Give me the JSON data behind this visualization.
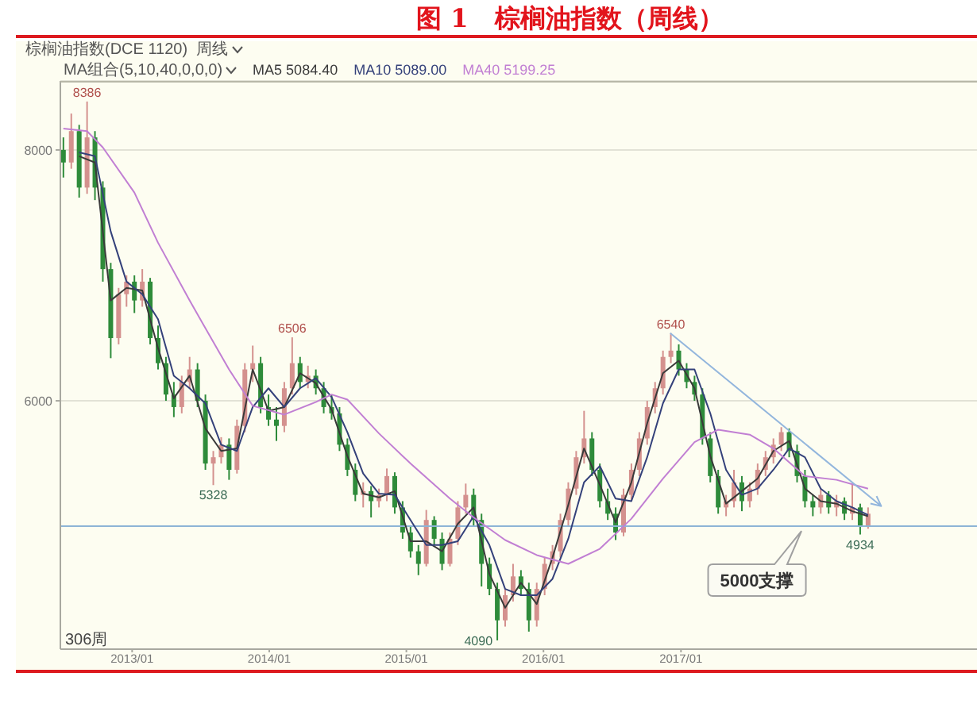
{
  "chart_data": {
    "type": "candlestick",
    "title": "图 1   棕榈油指数（周线）",
    "subtitle": "棕榈油指数(DCE 1120)  周线",
    "legend_title": "MA组合(5,10,40,0,0,0)",
    "x": [
      "2012-07-02",
      "2012-07-23",
      "2012-08-13",
      "2012-09-03",
      "2012-09-24",
      "2012-10-15",
      "2012-11-05",
      "2012-11-26",
      "2012-12-17",
      "2013-01-07",
      "2013-01-28",
      "2013-02-18",
      "2013-03-11",
      "2013-04-01",
      "2013-04-22",
      "2013-05-13",
      "2013-06-03",
      "2013-06-24",
      "2013-07-15",
      "2013-08-05",
      "2013-08-26",
      "2013-09-16",
      "2013-10-07",
      "2013-10-28",
      "2013-11-18",
      "2013-12-09",
      "2013-12-30",
      "2014-01-20",
      "2014-02-10",
      "2014-03-03",
      "2014-03-24",
      "2014-04-14",
      "2014-05-05",
      "2014-05-26",
      "2014-06-16",
      "2014-07-07",
      "2014-07-28",
      "2014-08-18",
      "2014-09-08",
      "2014-09-29",
      "2014-10-20",
      "2014-11-10",
      "2014-12-01",
      "2014-12-22",
      "2015-01-12",
      "2015-02-02",
      "2015-02-23",
      "2015-03-16",
      "2015-04-06",
      "2015-04-27",
      "2015-05-18",
      "2015-06-08",
      "2015-06-29",
      "2015-07-20",
      "2015-08-10",
      "2015-08-31",
      "2015-09-21",
      "2015-10-12",
      "2015-11-02",
      "2015-11-23",
      "2015-12-14",
      "2016-01-04",
      "2016-01-25",
      "2016-02-15",
      "2016-03-07",
      "2016-03-28",
      "2016-04-18",
      "2016-05-09",
      "2016-05-30",
      "2016-06-20",
      "2016-07-11",
      "2016-08-01",
      "2016-08-22",
      "2016-09-12",
      "2016-10-03",
      "2016-10-24",
      "2016-11-14",
      "2016-12-05",
      "2016-12-26",
      "2017-01-16",
      "2017-02-06",
      "2017-02-27",
      "2017-03-20",
      "2017-04-10",
      "2017-05-01",
      "2017-05-22",
      "2017-06-12",
      "2017-07-03",
      "2017-07-24",
      "2017-08-14",
      "2017-09-04",
      "2017-09-25",
      "2017-10-16",
      "2017-11-06",
      "2017-11-27",
      "2017-12-18",
      "2018-01-08",
      "2018-01-29",
      "2018-02-19",
      "2018-03-12",
      "2018-04-02",
      "2018-04-23",
      "2018-05-14"
    ],
    "ohlc": [
      [
        8000,
        8100,
        7780,
        7900
      ],
      [
        7900,
        8290,
        7850,
        8150
      ],
      [
        8150,
        8200,
        7620,
        7700
      ],
      [
        7700,
        8386,
        7650,
        8100
      ],
      [
        8100,
        8150,
        7600,
        7700
      ],
      [
        7700,
        7750,
        6950,
        7050
      ],
      [
        7050,
        7100,
        6340,
        6500
      ],
      [
        6500,
        6900,
        6450,
        6850
      ],
      [
        6850,
        7000,
        6750,
        6950
      ],
      [
        6950,
        7000,
        6700,
        6800
      ],
      [
        6800,
        7050,
        6750,
        6950
      ],
      [
        6950,
        6980,
        6450,
        6500
      ],
      [
        6500,
        6600,
        6250,
        6300
      ],
      [
        6300,
        6350,
        6000,
        6050
      ],
      [
        6050,
        6150,
        5870,
        5950
      ],
      [
        5950,
        6200,
        5900,
        6150
      ],
      [
        6150,
        6350,
        6100,
        6250
      ],
      [
        6250,
        6300,
        5950,
        6000
      ],
      [
        6000,
        6050,
        5450,
        5500
      ],
      [
        5500,
        5600,
        5328,
        5550
      ],
      [
        5550,
        5710,
        5500,
        5650
      ],
      [
        5650,
        5700,
        5370,
        5450
      ],
      [
        5450,
        5850,
        5420,
        5800
      ],
      [
        5800,
        6300,
        5750,
        6250
      ],
      [
        6250,
        6440,
        6150,
        6300
      ],
      [
        6300,
        6350,
        5900,
        5950
      ],
      [
        5950,
        6050,
        5800,
        5850
      ],
      [
        5850,
        5950,
        5680,
        5800
      ],
      [
        5800,
        6150,
        5750,
        6100
      ],
      [
        6100,
        6506,
        6050,
        6300
      ],
      [
        6300,
        6350,
        6100,
        6150
      ],
      [
        6150,
        6280,
        6100,
        6200
      ],
      [
        6200,
        6250,
        6050,
        6100
      ],
      [
        6100,
        6150,
        5900,
        5950
      ],
      [
        5950,
        6050,
        5850,
        5900
      ],
      [
        5900,
        5950,
        5600,
        5650
      ],
      [
        5650,
        5700,
        5400,
        5450
      ],
      [
        5450,
        5500,
        5200,
        5250
      ],
      [
        5250,
        5350,
        5150,
        5280
      ],
      [
        5280,
        5320,
        5070,
        5200
      ],
      [
        5200,
        5300,
        5150,
        5250
      ],
      [
        5250,
        5460,
        5200,
        5400
      ],
      [
        5400,
        5430,
        5100,
        5150
      ],
      [
        5150,
        5200,
        4900,
        4950
      ],
      [
        4950,
        5000,
        4750,
        4800
      ],
      [
        4800,
        4850,
        4610,
        4700
      ],
      [
        4700,
        5130,
        4680,
        5050
      ],
      [
        5050,
        5080,
        4850,
        4900
      ],
      [
        4900,
        4950,
        4650,
        4700
      ],
      [
        4700,
        4950,
        4680,
        4900
      ],
      [
        4900,
        5200,
        4850,
        5150
      ],
      [
        5150,
        5340,
        5100,
        5250
      ],
      [
        5250,
        5300,
        5000,
        5050
      ],
      [
        5050,
        5100,
        4520,
        4700
      ],
      [
        4700,
        4750,
        4450,
        4500
      ],
      [
        4500,
        4550,
        4090,
        4250
      ],
      [
        4250,
        4500,
        4200,
        4450
      ],
      [
        4450,
        4700,
        4400,
        4600
      ],
      [
        4600,
        4650,
        4450,
        4500
      ],
      [
        4500,
        4550,
        4160,
        4250
      ],
      [
        4250,
        4550,
        4200,
        4500
      ],
      [
        4500,
        4750,
        4450,
        4700
      ],
      [
        4700,
        4850,
        4650,
        4800
      ],
      [
        4800,
        5100,
        4750,
        5050
      ],
      [
        5050,
        5350,
        5000,
        5300
      ],
      [
        5300,
        5600,
        5250,
        5550
      ],
      [
        5550,
        5920,
        5500,
        5700
      ],
      [
        5700,
        5750,
        5400,
        5450
      ],
      [
        5450,
        5500,
        5150,
        5200
      ],
      [
        5200,
        5300,
        5050,
        5100
      ],
      [
        5100,
        5150,
        4890,
        4950
      ],
      [
        4950,
        5300,
        4920,
        5250
      ],
      [
        5250,
        5500,
        5200,
        5450
      ],
      [
        5450,
        5750,
        5400,
        5700
      ],
      [
        5700,
        6000,
        5650,
        5950
      ],
      [
        5950,
        6150,
        5900,
        6100
      ],
      [
        6100,
        6400,
        6050,
        6350
      ],
      [
        6350,
        6540,
        6300,
        6400
      ],
      [
        6400,
        6450,
        6200,
        6250
      ],
      [
        6250,
        6300,
        6100,
        6150
      ],
      [
        6150,
        6200,
        6000,
        6050
      ],
      [
        6050,
        6100,
        5650,
        5700
      ],
      [
        5700,
        5750,
        5350,
        5400
      ],
      [
        5400,
        5450,
        5100,
        5150
      ],
      [
        5150,
        5250,
        5080,
        5200
      ],
      [
        5200,
        5450,
        5150,
        5350
      ],
      [
        5350,
        5400,
        5120,
        5200
      ],
      [
        5200,
        5350,
        5150,
        5300
      ],
      [
        5300,
        5500,
        5250,
        5450
      ],
      [
        5450,
        5600,
        5400,
        5550
      ],
      [
        5550,
        5700,
        5500,
        5650
      ],
      [
        5650,
        5790,
        5600,
        5750
      ],
      [
        5750,
        5780,
        5550,
        5600
      ],
      [
        5600,
        5650,
        5350,
        5400
      ],
      [
        5400,
        5450,
        5150,
        5200
      ],
      [
        5200,
        5250,
        5080,
        5150
      ],
      [
        5150,
        5300,
        5100,
        5250
      ],
      [
        5250,
        5280,
        5100,
        5150
      ],
      [
        5150,
        5250,
        5080,
        5200
      ],
      [
        5200,
        5230,
        5050,
        5100
      ],
      [
        5100,
        5340,
        5050,
        5150
      ],
      [
        5150,
        5180,
        4934,
        5000
      ],
      [
        5000,
        5150,
        4980,
        5100
      ]
    ],
    "colors": [
      "#2e8b3a",
      "#d4918e",
      "#2e8b3a",
      "#d4918e",
      "#2e8b3a",
      "#2e8b3a",
      "#2e8b3a",
      "#d4918e",
      "#d4918e",
      "#2e8b3a",
      "#d4918e",
      "#2e8b3a",
      "#2e8b3a",
      "#2e8b3a",
      "#2e8b3a",
      "#d4918e",
      "#d4918e",
      "#2e8b3a",
      "#2e8b3a",
      "#d4918e",
      "#d4918e",
      "#2e8b3a",
      "#d4918e",
      "#d4918e",
      "#d4918e",
      "#2e8b3a",
      "#2e8b3a",
      "#2e8b3a",
      "#d4918e",
      "#d4918e",
      "#2e8b3a",
      "#d4918e",
      "#2e8b3a",
      "#2e8b3a",
      "#2e8b3a",
      "#2e8b3a",
      "#2e8b3a",
      "#2e8b3a",
      "#d4918e",
      "#2e8b3a",
      "#d4918e",
      "#d4918e",
      "#2e8b3a",
      "#2e8b3a",
      "#2e8b3a",
      "#2e8b3a",
      "#d4918e",
      "#2e8b3a",
      "#2e8b3a",
      "#d4918e",
      "#d4918e",
      "#d4918e",
      "#2e8b3a",
      "#2e8b3a",
      "#2e8b3a",
      "#2e8b3a",
      "#d4918e",
      "#d4918e",
      "#2e8b3a",
      "#2e8b3a",
      "#d4918e",
      "#d4918e",
      "#d4918e",
      "#d4918e",
      "#d4918e",
      "#d4918e",
      "#d4918e",
      "#2e8b3a",
      "#2e8b3a",
      "#2e8b3a",
      "#2e8b3a",
      "#d4918e",
      "#d4918e",
      "#d4918e",
      "#d4918e",
      "#d4918e",
      "#d4918e",
      "#d4918e",
      "#2e8b3a",
      "#2e8b3a",
      "#2e8b3a",
      "#2e8b3a",
      "#2e8b3a",
      "#2e8b3a",
      "#d4918e",
      "#d4918e",
      "#2e8b3a",
      "#d4918e",
      "#d4918e",
      "#d4918e",
      "#d4918e",
      "#d4918e",
      "#2e8b3a",
      "#2e8b3a",
      "#2e8b3a",
      "#2e8b3a",
      "#d4918e",
      "#2e8b3a",
      "#d4918e",
      "#2e8b3a",
      "#d4918e",
      "#2e8b3a",
      "#d4918e"
    ],
    "series": [
      {
        "name": "MA5 5084.40",
        "type": "line",
        "color": "#3a3a3a",
        "x": [
          "2012-08-13",
          "2012-09-24",
          "2012-11-05",
          "2012-12-17",
          "2013-01-28",
          "2013-03-11",
          "2013-04-22",
          "2013-06-03",
          "2013-07-15",
          "2013-08-26",
          "2013-10-07",
          "2013-11-18",
          "2013-12-30",
          "2014-02-10",
          "2014-03-24",
          "2014-05-05",
          "2014-06-16",
          "2014-07-28",
          "2014-09-08",
          "2014-10-20",
          "2014-12-01",
          "2015-01-12",
          "2015-02-23",
          "2015-04-06",
          "2015-05-18",
          "2015-06-29",
          "2015-08-10",
          "2015-09-21",
          "2015-11-02",
          "2015-12-14",
          "2016-01-25",
          "2016-03-07",
          "2016-04-18",
          "2016-05-30",
          "2016-07-11",
          "2016-08-22",
          "2016-10-03",
          "2016-11-14",
          "2016-12-26",
          "2017-02-06",
          "2017-03-20",
          "2017-05-01",
          "2017-06-12",
          "2017-07-24",
          "2017-09-04",
          "2017-10-16",
          "2017-11-27",
          "2018-01-08",
          "2018-02-19",
          "2018-04-02",
          "2018-05-14"
        ],
        "values": [
          7950,
          7900,
          6800,
          6900,
          6880,
          6420,
          6020,
          6200,
          5780,
          5600,
          5620,
          6250,
          5920,
          5950,
          6220,
          6140,
          5930,
          5560,
          5260,
          5230,
          5280,
          4880,
          4880,
          4800,
          5020,
          5150,
          4620,
          4350,
          4550,
          4380,
          4750,
          5170,
          5620,
          5330,
          5030,
          5350,
          5820,
          6220,
          6320,
          6100,
          5560,
          5180,
          5280,
          5380,
          5600,
          5680,
          5300,
          5200,
          5180,
          5120,
          5080
        ]
      },
      {
        "name": "MA10 5089.00",
        "type": "line",
        "color": "#34417a",
        "x": [
          "2012-08-13",
          "2012-09-24",
          "2012-11-05",
          "2012-12-17",
          "2013-01-28",
          "2013-03-11",
          "2013-04-22",
          "2013-06-03",
          "2013-07-15",
          "2013-08-26",
          "2013-10-07",
          "2013-11-18",
          "2013-12-30",
          "2014-02-10",
          "2014-03-24",
          "2014-05-05",
          "2014-06-16",
          "2014-07-28",
          "2014-09-08",
          "2014-10-20",
          "2014-12-01",
          "2015-01-12",
          "2015-02-23",
          "2015-04-06",
          "2015-05-18",
          "2015-06-29",
          "2015-08-10",
          "2015-09-21",
          "2015-11-02",
          "2015-12-14",
          "2016-01-25",
          "2016-03-07",
          "2016-04-18",
          "2016-05-30",
          "2016-07-11",
          "2016-08-22",
          "2016-10-03",
          "2016-11-14",
          "2016-12-26",
          "2017-02-06",
          "2017-03-20",
          "2017-05-01",
          "2017-06-12",
          "2017-07-24",
          "2017-09-04",
          "2017-10-16",
          "2017-11-27",
          "2018-01-08",
          "2018-02-19",
          "2018-04-02",
          "2018-05-14"
        ],
        "values": [
          7980,
          7950,
          7350,
          6950,
          6850,
          6650,
          6200,
          6100,
          5980,
          5650,
          5600,
          5950,
          6100,
          5950,
          6100,
          6180,
          6030,
          5750,
          5420,
          5260,
          5250,
          5050,
          4850,
          4850,
          4880,
          5080,
          4850,
          4500,
          4450,
          4450,
          4580,
          4900,
          5350,
          5480,
          5220,
          5200,
          5550,
          5980,
          6250,
          6250,
          5900,
          5450,
          5250,
          5300,
          5450,
          5620,
          5550,
          5300,
          5200,
          5150,
          5090
        ]
      },
      {
        "name": "MA40 5199.25",
        "type": "line",
        "color": "#c17fd3",
        "x": [
          "2012-07-02",
          "2012-09-03",
          "2012-10-15",
          "2013-01-07",
          "2013-03-11",
          "2013-06-03",
          "2013-09-16",
          "2013-11-18",
          "2014-02-10",
          "2014-05-05",
          "2014-06-16",
          "2014-07-28",
          "2014-10-20",
          "2015-01-12",
          "2015-04-27",
          "2015-06-29",
          "2015-09-21",
          "2015-12-14",
          "2016-03-07",
          "2016-05-30",
          "2016-08-22",
          "2016-11-14",
          "2017-02-06",
          "2017-04-10",
          "2017-07-03",
          "2017-09-04",
          "2017-11-27",
          "2018-02-19",
          "2018-05-14"
        ],
        "values": [
          8170,
          8150,
          8020,
          7660,
          7260,
          6800,
          6250,
          5960,
          5890,
          5990,
          6050,
          6010,
          5740,
          5500,
          5220,
          5070,
          4890,
          4770,
          4700,
          4820,
          5060,
          5380,
          5670,
          5770,
          5730,
          5620,
          5400,
          5370,
          5300
        ]
      }
    ],
    "xlim": [
      "2012-06-24",
      "2019-02-28"
    ],
    "xticks": [
      {
        "value": "2013-01",
        "label": "2013/01"
      },
      {
        "value": "2014-01",
        "label": "2014/01"
      },
      {
        "value": "2015-01",
        "label": "2015/01"
      },
      {
        "value": "2016-01",
        "label": "2016/01"
      },
      {
        "value": "2017-01",
        "label": "2017/01"
      }
    ],
    "ylim": [
      4020,
      8550
    ],
    "yticks": [
      6000,
      8000
    ],
    "grid": "y",
    "legend": "top left",
    "ref_lines": [
      {
        "axis": "y",
        "value": 5000,
        "label": "5000支撑",
        "color": "#8db4d6"
      }
    ],
    "annotations": [
      {
        "text": "8386",
        "x": "2012-09-03",
        "y": 8386
      },
      {
        "text": "5328",
        "x": "2013-08-05",
        "y": 5328
      },
      {
        "text": "6506",
        "x": "2014-03-03",
        "y": 6506
      },
      {
        "text": "4090",
        "x": "2015-08-31",
        "y": 4090
      },
      {
        "text": "6540",
        "x": "2016-12-05",
        "y": 6540
      },
      {
        "text": "4934",
        "x": "2018-04-23",
        "y": 4934
      },
      "306周"
    ]
  }
}
